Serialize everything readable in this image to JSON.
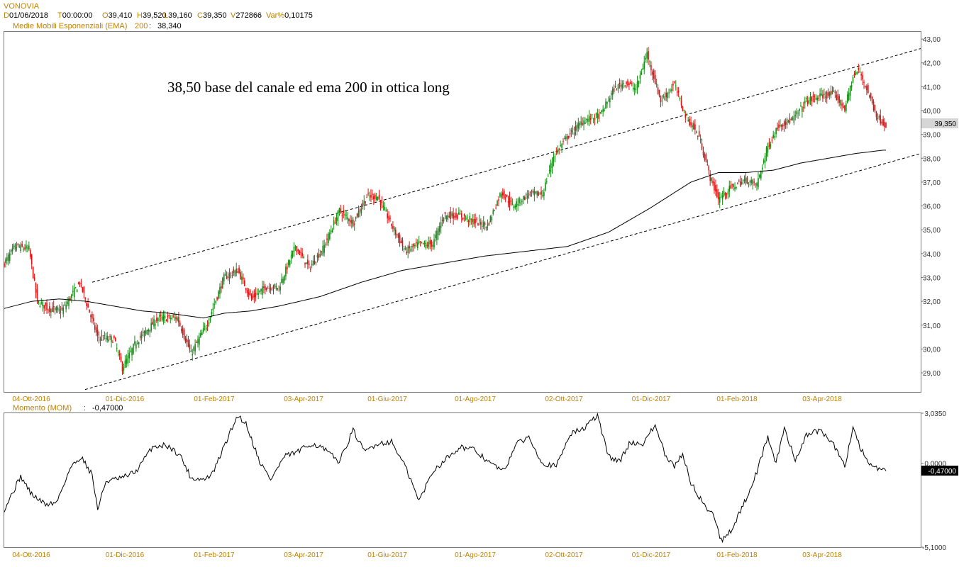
{
  "header": {
    "symbol": "VONOVIA",
    "ohlc": [
      {
        "k": "D",
        "v": "01/06/2018"
      },
      {
        "k": "T",
        "v": "00:00:00"
      },
      {
        "k": "O",
        "v": "39,410"
      },
      {
        "k": "H",
        "v": "39,520"
      },
      {
        "k": "L",
        "v": "39,160"
      },
      {
        "k": "C",
        "v": "39,350"
      },
      {
        "k": "V",
        "v": "272866"
      },
      {
        "k": "Var%",
        "v": "0,10175"
      }
    ],
    "ema_label": "Medie Mobili Esponenziali (EMA)",
    "ema_period": "200",
    "ema_value": "38,340"
  },
  "annotation": "38,50 base del canale ed ema 200 in ottica long",
  "colors": {
    "up": "#1a8a1a",
    "down": "#e01010",
    "accent": "#c08000",
    "line": "#000000"
  },
  "chart_data": [
    {
      "type": "candlestick",
      "ylim": [
        28.2,
        43.3
      ],
      "y_ticks": [
        "29,00",
        "30,00",
        "31,00",
        "32,00",
        "33,00",
        "34,00",
        "35,00",
        "36,00",
        "37,00",
        "38,00",
        "39,00",
        "40,00",
        "41,00",
        "42,00",
        "43,00"
      ],
      "x_ticks": [
        "04-Ott-2016",
        "01-Dic-2016",
        "01-Feb-2017",
        "03-Apr-2017",
        "01-Giu-2017",
        "01-Ago-2017",
        "02-Ott-2017",
        "01-Dic-2017",
        "01-Feb-2018",
        "03-Apr-2018"
      ],
      "last_price_label": "39,350",
      "close_anchors": [
        [
          0,
          33.6
        ],
        [
          8,
          34.3
        ],
        [
          18,
          34.2
        ],
        [
          24,
          32.0
        ],
        [
          32,
          31.7
        ],
        [
          42,
          31.6
        ],
        [
          55,
          32.8
        ],
        [
          60,
          31.9
        ],
        [
          68,
          30.5
        ],
        [
          80,
          30.4
        ],
        [
          86,
          29.2
        ],
        [
          96,
          30.3
        ],
        [
          112,
          31.3
        ],
        [
          126,
          31.3
        ],
        [
          136,
          29.8
        ],
        [
          148,
          31.1
        ],
        [
          160,
          33.0
        ],
        [
          170,
          33.3
        ],
        [
          180,
          32.1
        ],
        [
          190,
          32.6
        ],
        [
          200,
          32.6
        ],
        [
          212,
          34.3
        ],
        [
          222,
          33.4
        ],
        [
          232,
          34.2
        ],
        [
          244,
          35.8
        ],
        [
          254,
          35.3
        ],
        [
          264,
          36.4
        ],
        [
          272,
          36.4
        ],
        [
          282,
          35.2
        ],
        [
          292,
          34.1
        ],
        [
          302,
          34.4
        ],
        [
          312,
          34.4
        ],
        [
          320,
          35.6
        ],
        [
          332,
          35.6
        ],
        [
          344,
          35.3
        ],
        [
          352,
          35.2
        ],
        [
          362,
          36.6
        ],
        [
          370,
          36.0
        ],
        [
          382,
          36.5
        ],
        [
          392,
          36.5
        ],
        [
          400,
          38.1
        ],
        [
          410,
          38.9
        ],
        [
          422,
          39.6
        ],
        [
          434,
          39.8
        ],
        [
          444,
          40.9
        ],
        [
          452,
          41.2
        ],
        [
          460,
          40.9
        ],
        [
          468,
          42.4
        ],
        [
          478,
          40.4
        ],
        [
          488,
          41.1
        ],
        [
          496,
          39.8
        ],
        [
          506,
          38.9
        ],
        [
          514,
          37.2
        ],
        [
          520,
          36.3
        ],
        [
          530,
          36.8
        ],
        [
          540,
          37.1
        ],
        [
          548,
          36.9
        ],
        [
          556,
          38.5
        ],
        [
          564,
          39.4
        ],
        [
          574,
          39.6
        ],
        [
          584,
          40.4
        ],
        [
          594,
          40.6
        ],
        [
          604,
          40.7
        ],
        [
          612,
          40.1
        ],
        [
          618,
          41.4
        ],
        [
          622,
          41.7
        ],
        [
          626,
          41.2
        ],
        [
          630,
          40.6
        ],
        [
          636,
          39.7
        ],
        [
          642,
          39.4
        ]
      ],
      "ema_anchors": [
        [
          0,
          31.7
        ],
        [
          20,
          32.0
        ],
        [
          40,
          32.1
        ],
        [
          60,
          32.0
        ],
        [
          80,
          31.8
        ],
        [
          100,
          31.6
        ],
        [
          120,
          31.5
        ],
        [
          145,
          31.3
        ],
        [
          160,
          31.5
        ],
        [
          180,
          31.6
        ],
        [
          200,
          31.8
        ],
        [
          230,
          32.2
        ],
        [
          260,
          32.8
        ],
        [
          290,
          33.3
        ],
        [
          320,
          33.6
        ],
        [
          350,
          33.9
        ],
        [
          380,
          34.1
        ],
        [
          410,
          34.3
        ],
        [
          440,
          34.9
        ],
        [
          470,
          35.9
        ],
        [
          500,
          37.0
        ],
        [
          520,
          37.4
        ],
        [
          540,
          37.4
        ],
        [
          560,
          37.5
        ],
        [
          580,
          37.8
        ],
        [
          600,
          38.0
        ],
        [
          620,
          38.2
        ],
        [
          640,
          38.34
        ]
      ],
      "channel_upper": [
        [
          130,
          32.8
        ],
        [
          1298,
          42.6
        ]
      ],
      "channel_lower": [
        [
          120,
          28.3
        ],
        [
          1298,
          38.2
        ]
      ]
    },
    {
      "type": "line",
      "name": "Momento (MOM)",
      "value_label": "-0,47000",
      "ylim": [
        -5.1,
        3.035
      ],
      "y_ticks": [
        "3,0350",
        "0,0000",
        "-5,1000"
      ],
      "x_ticks": [
        "04-Ott-2016",
        "01-Dic-2016",
        "01-Feb-2017",
        "03-Apr-2017",
        "01-Giu-2017",
        "01-Ago-2017",
        "02-Ott-2017",
        "01-Dic-2017",
        "01-Feb-2018",
        "03-Apr-2018"
      ],
      "last_value_label": "-0,47000",
      "anchors": [
        [
          0,
          -2.8
        ],
        [
          12,
          -0.8
        ],
        [
          20,
          -1.9
        ],
        [
          30,
          -2.5
        ],
        [
          38,
          -2.4
        ],
        [
          48,
          -0.3
        ],
        [
          56,
          0.4
        ],
        [
          64,
          -0.7
        ],
        [
          68,
          -2.8
        ],
        [
          74,
          -1.1
        ],
        [
          86,
          -0.9
        ],
        [
          96,
          -0.5
        ],
        [
          108,
          1.0
        ],
        [
          118,
          1.1
        ],
        [
          128,
          0.5
        ],
        [
          136,
          -0.9
        ],
        [
          146,
          -1.0
        ],
        [
          152,
          -0.6
        ],
        [
          160,
          1.0
        ],
        [
          170,
          2.9
        ],
        [
          176,
          2.4
        ],
        [
          186,
          0.1
        ],
        [
          194,
          -1.0
        ],
        [
          204,
          0.4
        ],
        [
          214,
          0.7
        ],
        [
          224,
          1.2
        ],
        [
          232,
          0.9
        ],
        [
          244,
          0.1
        ],
        [
          254,
          2.0
        ],
        [
          262,
          0.7
        ],
        [
          272,
          1.2
        ],
        [
          282,
          1.3
        ],
        [
          292,
          -0.2
        ],
        [
          302,
          -2.3
        ],
        [
          312,
          -0.5
        ],
        [
          322,
          0.3
        ],
        [
          332,
          1.0
        ],
        [
          342,
          0.8
        ],
        [
          354,
          0.0
        ],
        [
          364,
          -0.5
        ],
        [
          372,
          1.1
        ],
        [
          382,
          1.6
        ],
        [
          392,
          0.0
        ],
        [
          402,
          -0.2
        ],
        [
          412,
          1.8
        ],
        [
          422,
          2.1
        ],
        [
          432,
          2.9
        ],
        [
          440,
          0.4
        ],
        [
          448,
          0.1
        ],
        [
          456,
          1.3
        ],
        [
          464,
          1.1
        ],
        [
          474,
          2.3
        ],
        [
          482,
          0.3
        ],
        [
          488,
          -0.2
        ],
        [
          494,
          0.6
        ],
        [
          500,
          -1.2
        ],
        [
          510,
          -2.6
        ],
        [
          516,
          -3.0
        ],
        [
          522,
          -4.7
        ],
        [
          530,
          -4.0
        ],
        [
          540,
          -2.2
        ],
        [
          548,
          -0.5
        ],
        [
          556,
          1.6
        ],
        [
          562,
          0.0
        ],
        [
          568,
          2.1
        ],
        [
          576,
          0.2
        ],
        [
          584,
          1.7
        ],
        [
          594,
          2.0
        ],
        [
          604,
          1.1
        ],
        [
          612,
          -0.2
        ],
        [
          618,
          2.2
        ],
        [
          624,
          0.8
        ],
        [
          630,
          0.0
        ],
        [
          636,
          -0.4
        ],
        [
          642,
          -0.47
        ]
      ]
    }
  ]
}
